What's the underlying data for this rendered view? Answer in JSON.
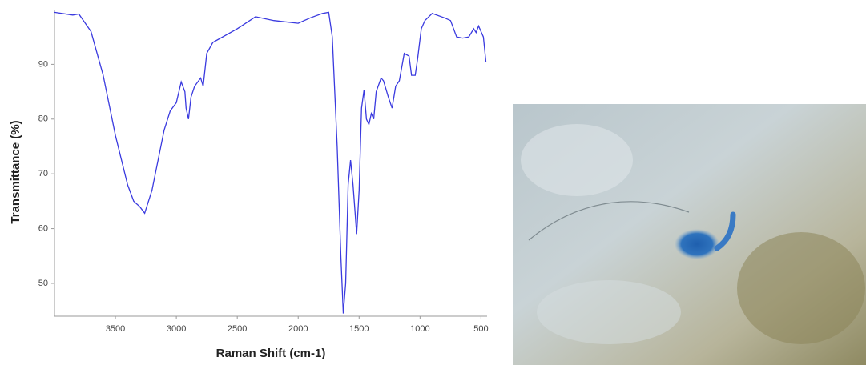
{
  "chart_data": {
    "type": "line",
    "xlabel": "Raman Shift (cm-1)",
    "ylabel": "Transmittance (%)",
    "x": [
      4000,
      3850,
      3800,
      3700,
      3600,
      3500,
      3400,
      3350,
      3300,
      3260,
      3200,
      3100,
      3050,
      3000,
      2960,
      2930,
      2920,
      2900,
      2880,
      2850,
      2800,
      2780,
      2750,
      2700,
      2500,
      2350,
      2200,
      2000,
      1900,
      1800,
      1750,
      1720,
      1680,
      1650,
      1630,
      1610,
      1590,
      1570,
      1550,
      1520,
      1500,
      1480,
      1460,
      1440,
      1420,
      1400,
      1380,
      1360,
      1320,
      1300,
      1260,
      1230,
      1200,
      1170,
      1130,
      1090,
      1070,
      1040,
      1020,
      990,
      960,
      900,
      800,
      750,
      700,
      650,
      600,
      560,
      540,
      520,
      480,
      460
    ],
    "series": [
      {
        "color": "#3a3adf",
        "values": [
          99.5,
          99,
          99.2,
          96,
          88,
          77,
          68,
          65,
          64,
          62.8,
          67,
          78,
          81.5,
          83,
          86.8,
          85,
          82,
          80,
          84,
          86,
          87.5,
          86,
          92,
          94,
          96.5,
          98.7,
          98,
          97.5,
          98.5,
          99.3,
          99.5,
          95,
          75,
          55,
          44.5,
          50,
          68,
          72.5,
          68,
          59,
          67,
          82,
          85.3,
          80,
          79,
          81,
          80,
          85,
          87.5,
          87,
          84,
          82,
          86,
          87,
          92,
          91.5,
          88,
          88,
          91,
          96.5,
          98,
          99.3,
          98.5,
          98,
          95,
          94.8,
          95,
          96.5,
          95.8,
          97,
          95,
          90.5
        ]
      }
    ],
    "xlim": [
      4000,
      450
    ],
    "ylim": [
      44,
      100
    ],
    "xticks": [
      3500,
      3000,
      2500,
      2000,
      1500,
      1000,
      500
    ],
    "yticks": [
      50,
      60,
      70,
      80,
      90
    ]
  }
}
